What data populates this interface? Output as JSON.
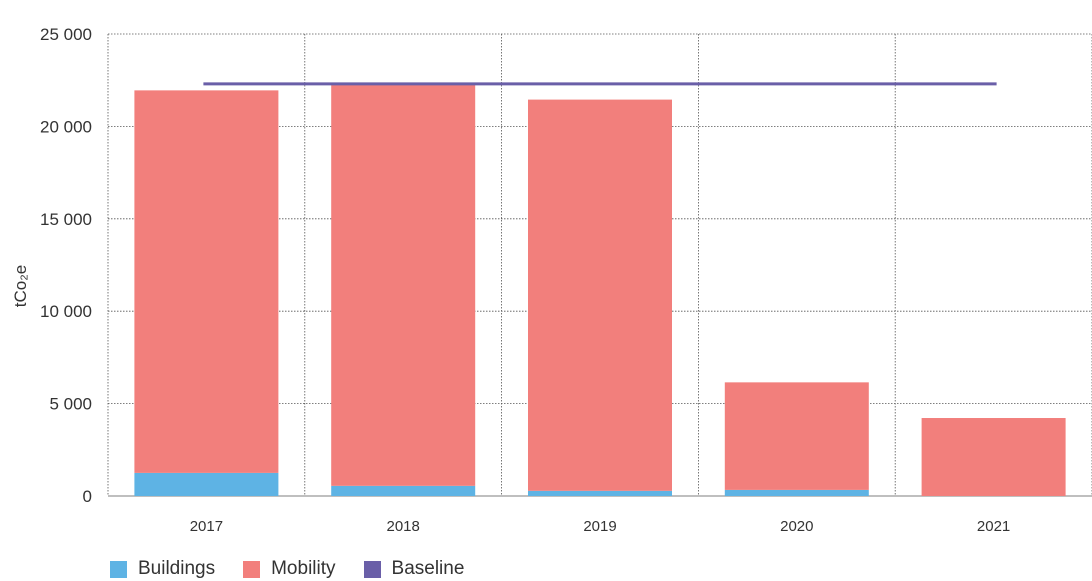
{
  "chart_data": {
    "type": "bar",
    "stacked": true,
    "categories": [
      "2017",
      "2018",
      "2019",
      "2020",
      "2021"
    ],
    "series": [
      {
        "name": "Buildings",
        "color": "#5eb3e4",
        "values": [
          1250,
          550,
          280,
          330,
          0
        ]
      },
      {
        "name": "Mobility",
        "color": "#f27f7c",
        "values": [
          20700,
          21750,
          21170,
          5820,
          4220
        ]
      }
    ],
    "baseline": {
      "name": "Baseline",
      "color": "#6a5fa8",
      "value": 22300
    },
    "ylabel": "tCo₂e",
    "ylim": [
      0,
      25000
    ],
    "yticks": [
      "0",
      "5 000",
      "10 000",
      "15 000",
      "20 000",
      "25 000"
    ],
    "ytick_values": [
      0,
      5000,
      10000,
      15000,
      20000,
      25000
    ],
    "grid": true,
    "legend_position": "bottom-left"
  },
  "legend": {
    "items": [
      {
        "label": "Buildings",
        "color": "#5eb3e4"
      },
      {
        "label": "Mobility",
        "color": "#f27f7c"
      },
      {
        "label": "Baseline",
        "color": "#6a5fa8"
      }
    ]
  }
}
